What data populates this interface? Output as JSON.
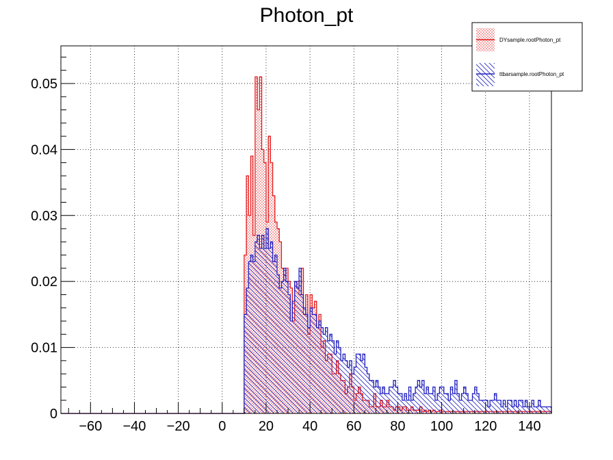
{
  "chart_data": {
    "type": "histogram",
    "title": "Photon_pt",
    "xlabel": "",
    "ylabel": "",
    "xlim": [
      -73.5,
      150
    ],
    "ylim": [
      0,
      0.0557
    ],
    "x_ticks": [
      -60,
      -40,
      -20,
      0,
      20,
      40,
      60,
      80,
      100,
      120,
      140
    ],
    "y_ticks": [
      0,
      0.01,
      0.02,
      0.03,
      0.04,
      0.05
    ],
    "x_tick_labels": [
      "−60",
      "−40",
      "−20",
      "0",
      "20",
      "40",
      "60",
      "80",
      "100",
      "120",
      "140"
    ],
    "y_tick_labels": [
      "0",
      "0.01",
      "0.02",
      "0.03",
      "0.04",
      "0.05"
    ],
    "grid": true,
    "legend_position": "top-right",
    "bin_start": 10,
    "bin_width": 1,
    "series": [
      {
        "name": "DYsample.rootPhoton_pt",
        "color": "#e31a1c",
        "fill": "dotted",
        "values": [
          0.024,
          0.036,
          0.03,
          0.039,
          0.027,
          0.051,
          0.046,
          0.051,
          0.04,
          0.038,
          0.029,
          0.042,
          0.038,
          0.033,
          0.029,
          0.028,
          0.026,
          0.022,
          0.021,
          0.022,
          0.02,
          0.019,
          0.014,
          0.02,
          0.02,
          0.018,
          0.022,
          0.015,
          0.018,
          0.012,
          0.018,
          0.016,
          0.017,
          0.013,
          0.015,
          0.01,
          0.011,
          0.008,
          0.009,
          0.009,
          0.006,
          0.006,
          0.008,
          0.006,
          0.005,
          0.005,
          0.003,
          0.004,
          0.006,
          0.004,
          0.002,
          0.003,
          0.004,
          0.003,
          0.002,
          0.002,
          0.002,
          0.001,
          0.001,
          0.003,
          0.001,
          0.001,
          0.002,
          0.001,
          0.001,
          0.002,
          0.001,
          0.001,
          0.0005,
          0.001,
          0.001,
          0.0005,
          0.001,
          0.001,
          0.0005,
          0.0005,
          0.001,
          0.0005,
          0.0005,
          0.0005,
          0.001,
          0.0003,
          0.0005,
          0.0003,
          0.0005,
          0.0003,
          0.0005,
          0.0003,
          0.0003,
          0.0005,
          0.0003,
          0.0003,
          0.0003,
          0.0003,
          0.0003,
          0.0003,
          0.0003,
          0.0003,
          0.0003,
          0.0003,
          0.0003,
          0.0003,
          0.0003,
          0.0003,
          0.0003,
          0.0003,
          0.0003,
          0.0003,
          0.0003,
          0.0003,
          0.0003,
          0.0003,
          0.0003,
          0.0003,
          0.0003,
          0.0003,
          0.0003,
          0.0003,
          0.0003,
          0.0003,
          0.0003,
          0.0003,
          0.0003,
          0.0003,
          0.0003,
          0.0003,
          0.0003,
          0.0003,
          0.0003,
          0.0003,
          0.0003,
          0.0003,
          0.0003,
          0.0003,
          0.0003,
          0.0003,
          0.0003,
          0.0003,
          0.0003,
          0.0003
        ]
      },
      {
        "name": "ttbarsample.rootPhoton_pt",
        "color": "#1f1fbf",
        "fill": "hatched",
        "values": [
          0.015,
          0.019,
          0.023,
          0.024,
          0.023,
          0.026,
          0.027,
          0.025,
          0.027,
          0.025,
          0.028,
          0.025,
          0.026,
          0.023,
          0.024,
          0.021,
          0.019,
          0.02,
          0.022,
          0.02,
          0.018,
          0.014,
          0.017,
          0.02,
          0.019,
          0.022,
          0.018,
          0.016,
          0.015,
          0.013,
          0.016,
          0.015,
          0.015,
          0.013,
          0.014,
          0.013,
          0.012,
          0.013,
          0.011,
          0.012,
          0.011,
          0.009,
          0.011,
          0.01,
          0.008,
          0.009,
          0.008,
          0.007,
          0.008,
          0.006,
          0.007,
          0.009,
          0.009,
          0.008,
          0.009,
          0.007,
          0.006,
          0.005,
          0.005,
          0.004,
          0.005,
          0.004,
          0.003,
          0.004,
          0.003,
          0.003,
          0.004,
          0.004,
          0.005,
          0.004,
          0.003,
          0.003,
          0.002,
          0.003,
          0.002,
          0.004,
          0.002,
          0.003,
          0.004,
          0.005,
          0.004,
          0.005,
          0.003,
          0.004,
          0.003,
          0.003,
          0.004,
          0.002,
          0.003,
          0.004,
          0.004,
          0.003,
          0.003,
          0.002,
          0.004,
          0.003,
          0.005,
          0.003,
          0.002,
          0.003,
          0.004,
          0.003,
          0.002,
          0.002,
          0.003,
          0.004,
          0.003,
          0.002,
          0.002,
          0.002,
          0.002,
          0.001,
          0.002,
          0.002,
          0.003,
          0.002,
          0.002,
          0.001,
          0.002,
          0.001,
          0.002,
          0.002,
          0.001,
          0.002,
          0.001,
          0.002,
          0.002,
          0.001,
          0.002,
          0.001,
          0.001,
          0.002,
          0.001,
          0.001,
          0.002,
          0.001,
          0.001,
          0.001,
          0.001,
          0.001
        ]
      }
    ]
  }
}
